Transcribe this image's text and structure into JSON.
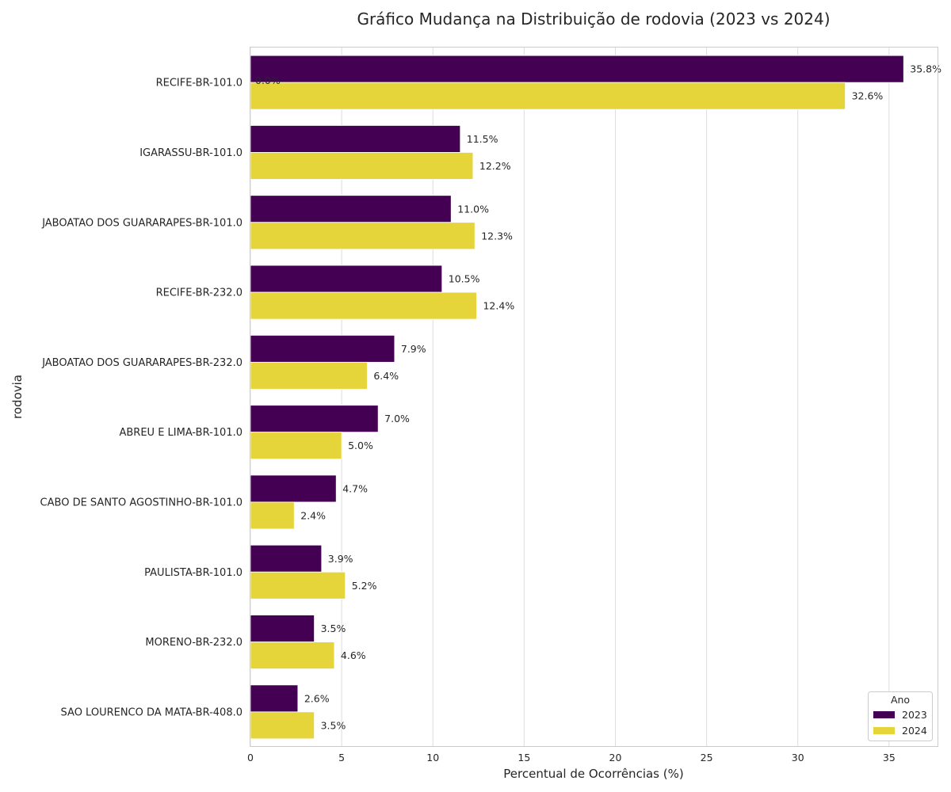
{
  "chart_data": {
    "type": "bar",
    "orientation": "horizontal",
    "title": "Gráfico Mudança na Distribuição de rodovia (2023 vs 2024)",
    "xlabel": "Percentual de Ocorrências (%)",
    "ylabel": "rodovia",
    "xlim": [
      0,
      37.7
    ],
    "xticks": [
      0,
      5,
      10,
      15,
      20,
      25,
      30,
      35
    ],
    "grid": "vertical",
    "categories": [
      "RECIFE-BR-101.0",
      "IGARASSU-BR-101.0",
      "JABOATAO DOS GUARARAPES-BR-101.0",
      "RECIFE-BR-232.0",
      "JABOATAO DOS GUARARAPES-BR-232.0",
      "ABREU E LIMA-BR-101.0",
      "CABO DE SANTO AGOSTINHO-BR-101.0",
      "PAULISTA-BR-101.0",
      "MORENO-BR-232.0",
      "SAO LOURENCO DA MATA-BR-408.0"
    ],
    "series": [
      {
        "name": "2023",
        "color": "#440154",
        "values": [
          35.8,
          11.5,
          11.0,
          10.5,
          7.9,
          7.0,
          4.7,
          3.9,
          3.5,
          2.6
        ],
        "labels": [
          "35.8%",
          "11.5%",
          "11.0%",
          "10.5%",
          "7.9%",
          "7.0%",
          "4.7%",
          "3.9%",
          "3.5%",
          "2.6%"
        ]
      },
      {
        "name": "2024",
        "color": "#e5d53a",
        "values": [
          32.6,
          12.2,
          12.3,
          12.4,
          6.4,
          5.0,
          2.4,
          5.2,
          4.6,
          3.5
        ],
        "labels": [
          "32.6%",
          "12.2%",
          "12.3%",
          "12.4%",
          "6.4%",
          "5.0%",
          "2.4%",
          "5.2%",
          "4.6%",
          "3.5%"
        ]
      }
    ],
    "stray_label": "0.0%",
    "legend": {
      "title": "Ano",
      "position": "bottom-right"
    }
  }
}
